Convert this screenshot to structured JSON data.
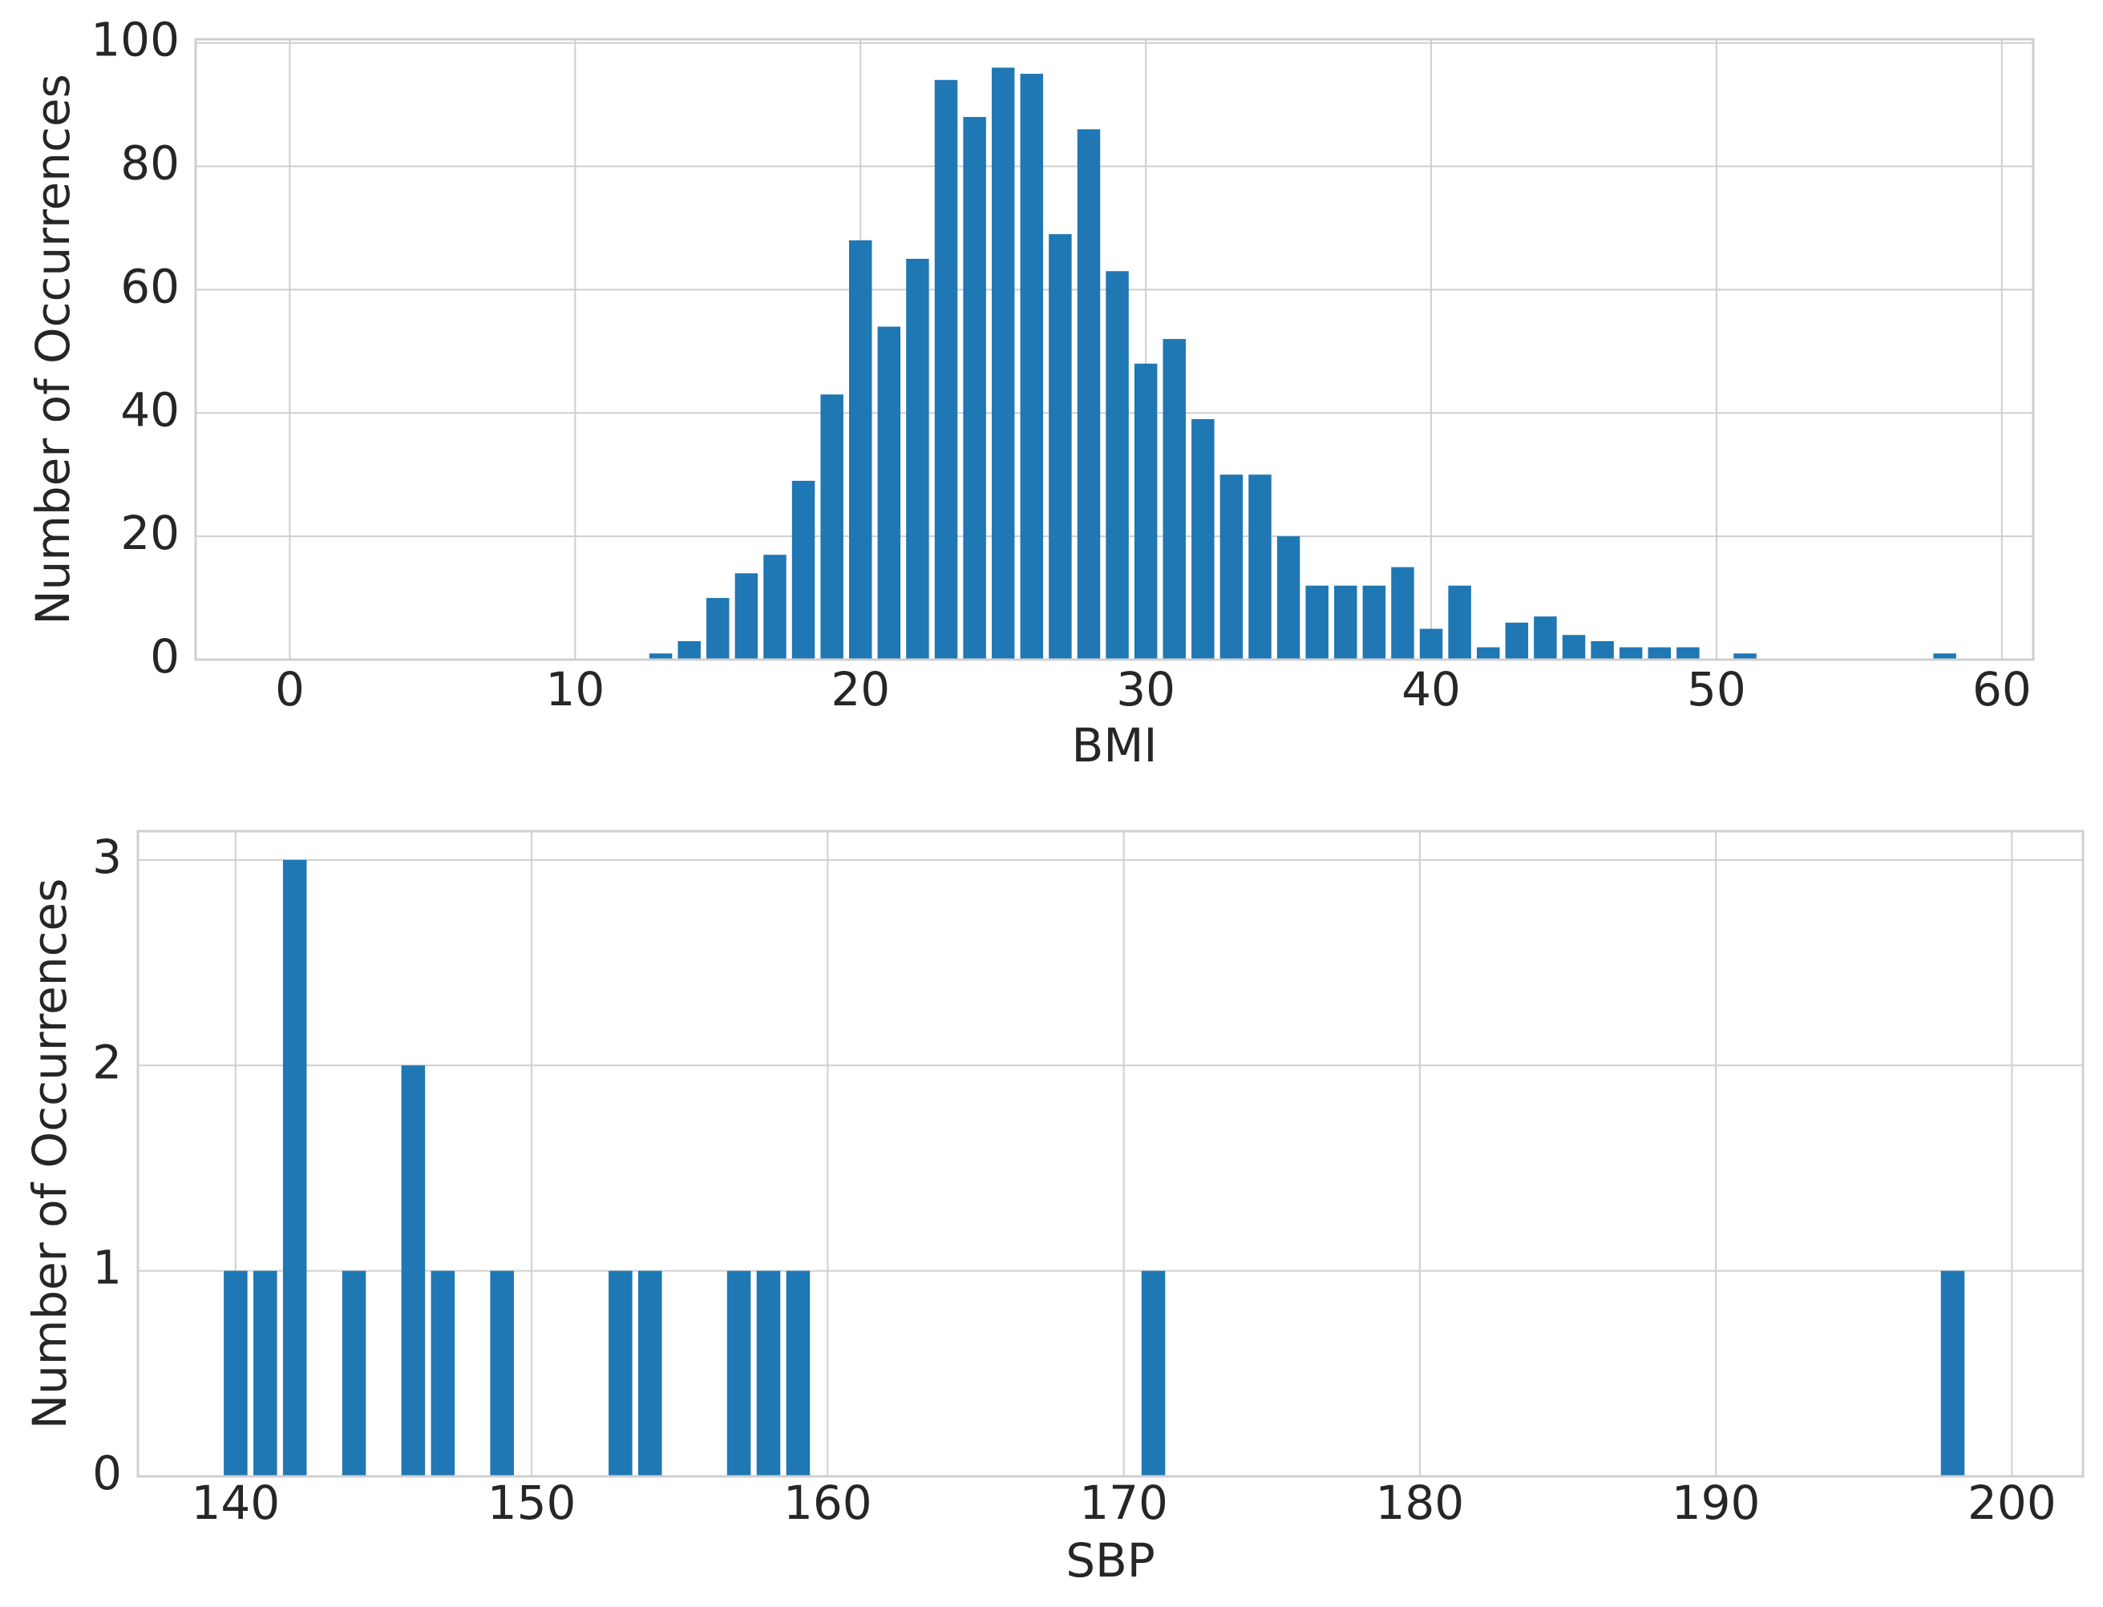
{
  "chart_data": [
    {
      "type": "bar",
      "x_label": "BMI",
      "y_label": "Number of Occurrences",
      "color": "#1f77b4",
      "grid": true,
      "x": [
        13,
        14,
        15,
        16,
        17,
        18,
        19,
        20,
        21,
        22,
        23,
        24,
        25,
        26,
        27,
        28,
        29,
        30,
        31,
        32,
        33,
        34,
        35,
        36,
        37,
        38,
        39,
        40,
        41,
        42,
        43,
        44,
        45,
        46,
        47,
        48,
        49,
        51,
        58
      ],
      "values": [
        1,
        3,
        10,
        14,
        17,
        29,
        43,
        68,
        54,
        65,
        94,
        88,
        96,
        95,
        69,
        86,
        63,
        48,
        52,
        39,
        30,
        30,
        20,
        12,
        12,
        12,
        15,
        5,
        12,
        2,
        6,
        7,
        4,
        3,
        2,
        2,
        2,
        1,
        1
      ],
      "xlim": [
        -3.3,
        61.1
      ],
      "ylim": [
        0,
        100.6
      ],
      "xticks": [
        0,
        10,
        20,
        30,
        40,
        50,
        60
      ],
      "yticks": [
        0,
        20,
        40,
        60,
        80,
        100
      ]
    },
    {
      "type": "bar",
      "x_label": "SBP",
      "y_label": "Number of Occurrences",
      "color": "#1f77b4",
      "grid": true,
      "x": [
        140,
        141,
        142,
        144,
        146,
        147,
        149,
        153,
        154,
        157,
        158,
        159,
        171,
        198
      ],
      "values": [
        1,
        1,
        3,
        1,
        2,
        1,
        1,
        1,
        1,
        1,
        1,
        1,
        1,
        1
      ],
      "xlim": [
        136.7,
        202.4
      ],
      "ylim": [
        0,
        3.14
      ],
      "xticks": [
        140,
        150,
        160,
        170,
        180,
        190,
        200
      ],
      "yticks": [
        0,
        1,
        2,
        3
      ]
    }
  ]
}
